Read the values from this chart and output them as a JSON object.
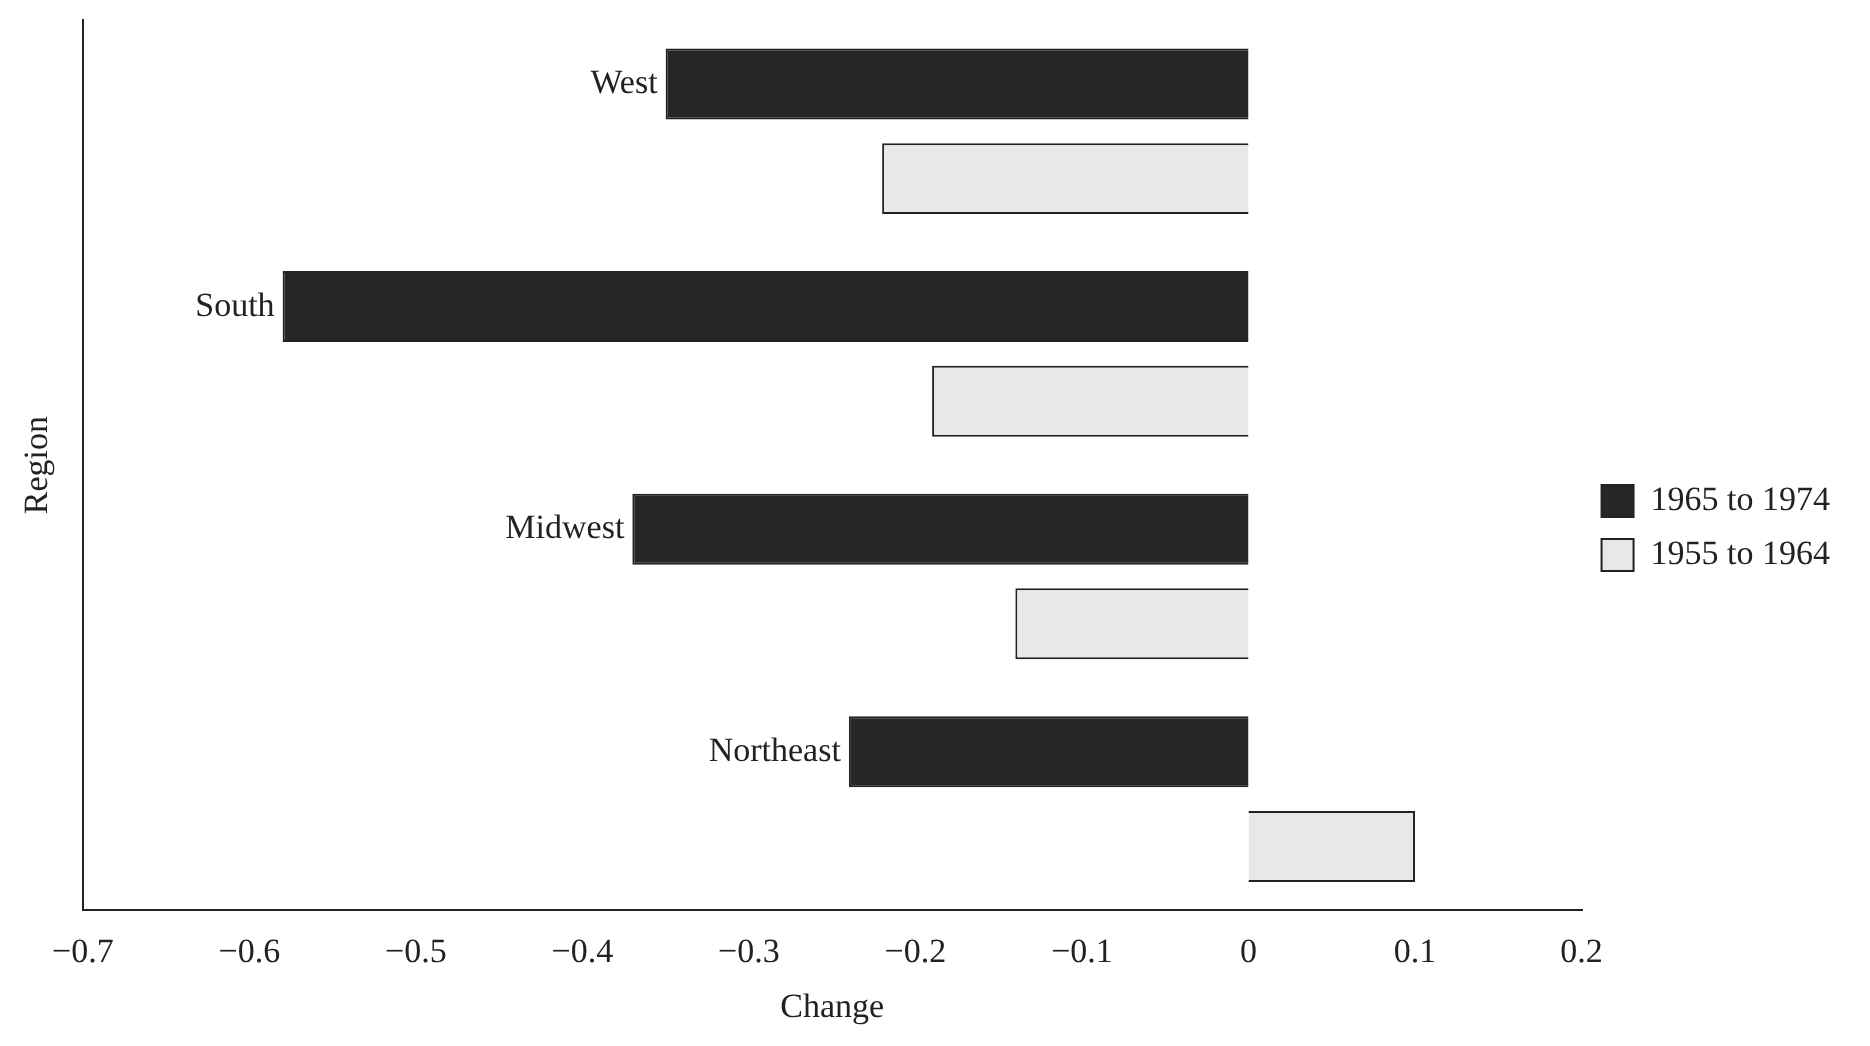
{
  "chart_data": {
    "type": "bar",
    "orientation": "horizontal",
    "xlabel": "Change",
    "ylabel": "Region",
    "categories": [
      "West",
      "South",
      "Midwest",
      "Northeast"
    ],
    "series": [
      {
        "name": "1965 to 1974",
        "color": "#262626",
        "values": [
          -0.35,
          -0.58,
          -0.37,
          -0.24
        ]
      },
      {
        "name": "1955 to 1964",
        "color": "#e8e8e8",
        "values": [
          -0.22,
          -0.19,
          -0.14,
          0.1
        ]
      }
    ],
    "xlim": [
      -0.7,
      0.2
    ],
    "xticks": [
      -0.7,
      -0.6,
      -0.5,
      -0.4,
      -0.3,
      -0.2,
      -0.1,
      0,
      0.1,
      0.2
    ],
    "grid": false,
    "legend": "right"
  }
}
